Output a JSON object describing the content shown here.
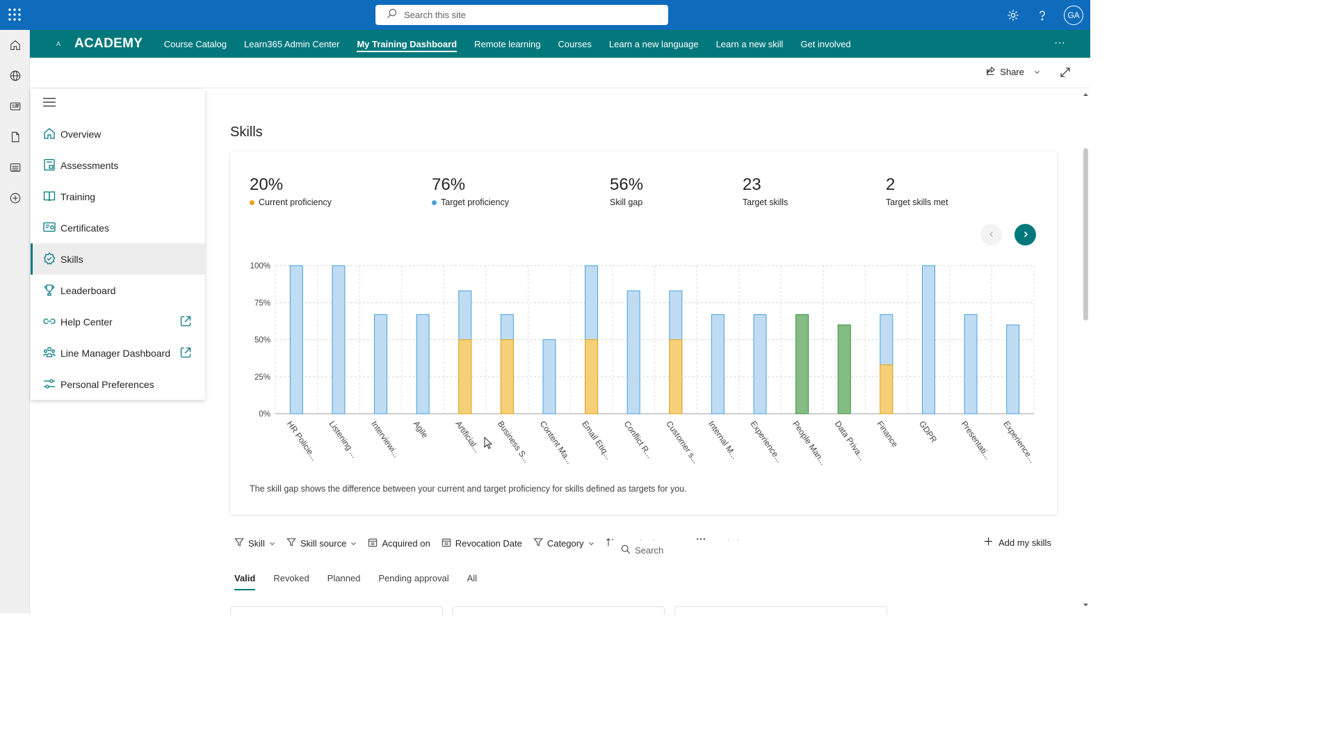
{
  "topbar": {
    "search_placeholder": "Search this site",
    "avatar_initials": "GA",
    "brand_color": "#0f6cbd"
  },
  "nav": {
    "logo_letter": "A",
    "site_name": "ACADEMY",
    "links": [
      "Course Catalog",
      "Learn365 Admin Center",
      "My Training Dashboard",
      "Remote learning",
      "Courses",
      "Learn a new language",
      "Learn a new skill",
      "Get involved"
    ],
    "active_link": "My Training Dashboard",
    "more": "···",
    "theme_color": "#03787c"
  },
  "commandbar": {
    "share_label": "Share"
  },
  "sidebar": {
    "items": [
      {
        "label": "Overview",
        "icon": "home-icon"
      },
      {
        "label": "Assessments",
        "icon": "assessment-icon"
      },
      {
        "label": "Training",
        "icon": "book-icon"
      },
      {
        "label": "Certificates",
        "icon": "certificate-icon"
      },
      {
        "label": "Skills",
        "icon": "skills-icon",
        "active": true
      },
      {
        "label": "Leaderboard",
        "icon": "trophy-icon"
      },
      {
        "label": "Help Center",
        "icon": "link-icon",
        "external": true
      },
      {
        "label": "Line Manager Dashboard",
        "icon": "people-icon",
        "external": true
      },
      {
        "label": "Personal Preferences",
        "icon": "settings-sliders-icon"
      }
    ]
  },
  "page": {
    "title": "Skills"
  },
  "stats": [
    {
      "value": "20%",
      "label": "Current proficiency",
      "dot": "#e8a317"
    },
    {
      "value": "76%",
      "label": "Target proficiency",
      "dot": "#4a9fd8"
    },
    {
      "value": "56%",
      "label": "Skill gap"
    },
    {
      "value": "23",
      "label": "Target skills"
    },
    {
      "value": "2",
      "label": "Target skills met"
    }
  ],
  "chart_data": {
    "type": "bar",
    "title": "",
    "xlabel": "",
    "ylabel": "",
    "ylim": [
      0,
      100
    ],
    "yticks": [
      "0%",
      "25%",
      "50%",
      "75%",
      "100%"
    ],
    "categories": [
      "HR Policie...",
      "Listening ...",
      "Interviewi...",
      "Agile",
      "Artificial...",
      "Business S...",
      "Content Ma...",
      "Email Etiq...",
      "Conflict R...",
      "Customer s...",
      "Internal M...",
      "Experience...",
      "People Man...",
      "Data Priva...",
      "Finance",
      "GDPR",
      "Presentati...",
      "Experience..."
    ],
    "series": [
      {
        "name": "Target proficiency",
        "color": "#bfdcf2",
        "values": [
          100,
          100,
          67,
          67,
          83,
          67,
          50,
          100,
          83,
          83,
          67,
          67,
          0,
          0,
          67,
          100,
          67,
          60
        ]
      },
      {
        "name": "Current proficiency",
        "color": "#f5d078",
        "values": [
          0,
          0,
          0,
          0,
          50,
          50,
          0,
          50,
          0,
          50,
          0,
          0,
          0,
          0,
          33,
          0,
          0,
          0
        ]
      },
      {
        "name": "Target met",
        "color": "#84bd83",
        "values": [
          0,
          0,
          0,
          0,
          0,
          0,
          0,
          0,
          0,
          0,
          0,
          0,
          67,
          60,
          0,
          0,
          0,
          0
        ]
      }
    ]
  },
  "footnote": "The skill gap shows the difference between your current and target proficiency for skills defined as targets for you.",
  "filters": [
    {
      "label": "Skill",
      "icon": "filter-icon",
      "dropdown": true
    },
    {
      "label": "Skill source",
      "icon": "filter-icon",
      "dropdown": true
    },
    {
      "label": "Acquired on",
      "icon": "calendar-icon",
      "dropdown": false
    },
    {
      "label": "Revocation Date",
      "icon": "calendar-icon",
      "dropdown": false
    },
    {
      "label": "Category",
      "icon": "filter-icon",
      "dropdown": true
    },
    {
      "label": "Acquired on ↓",
      "icon": "sort-icon",
      "dropdown": true
    },
    {
      "label": "Card view",
      "icon": "grid-icon",
      "dropdown": true
    },
    {
      "label": "Search",
      "icon": "search-icon",
      "dropdown": false
    }
  ],
  "add_skills_label": "Add my skills",
  "tabs": [
    "Valid",
    "Revoked",
    "Planned",
    "Pending approval",
    "All"
  ],
  "active_tab": "Valid"
}
